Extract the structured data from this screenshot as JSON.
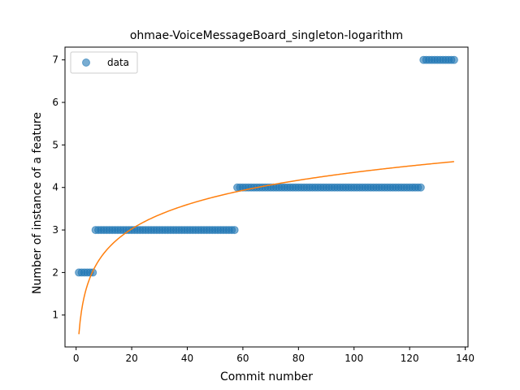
{
  "chart_data": {
    "type": "scatter",
    "title": "ohmae-VoiceMessageBoard_singleton-logarithm",
    "xlabel": "Commit number",
    "ylabel": "Number of instance of a feature",
    "xlim": [
      -4,
      141
    ],
    "ylim": [
      0.25,
      7.3
    ],
    "xticks": [
      0,
      20,
      40,
      60,
      80,
      100,
      120,
      140
    ],
    "yticks": [
      1,
      2,
      3,
      4,
      5,
      6,
      7
    ],
    "legend": {
      "position": "top-left",
      "entries": [
        "data"
      ]
    },
    "series": [
      {
        "name": "data",
        "kind": "scatter",
        "color": "#1f77b4",
        "runs": [
          {
            "x_start": 1,
            "x_end": 6,
            "y": 2
          },
          {
            "x_start": 7,
            "x_end": 57,
            "y": 3
          },
          {
            "x_start": 58,
            "x_end": 124,
            "y": 4
          },
          {
            "x_start": 125,
            "x_end": 136,
            "y": 7
          }
        ]
      },
      {
        "kind": "line",
        "color": "#ff7f0e",
        "fit": {
          "model": "logarithmic",
          "a": 0.55,
          "b": 0.826,
          "x_start": 1,
          "x_end": 136
        }
      }
    ]
  }
}
